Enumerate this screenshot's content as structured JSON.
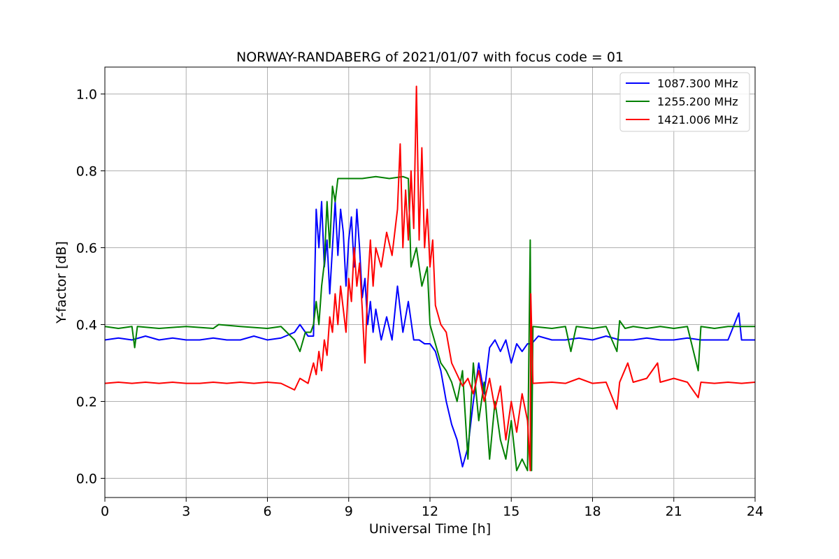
{
  "chart_data": {
    "type": "line",
    "title": "NORWAY-RANDABERG of 2021/01/07 with focus code = 01",
    "xlabel": "Universal Time [h]",
    "ylabel": "Y-factor [dB]",
    "xlim": [
      0,
      24
    ],
    "ylim": [
      -0.05,
      1.07
    ],
    "xticks": [
      0,
      3,
      6,
      9,
      12,
      15,
      18,
      21,
      24
    ],
    "xtick_labels": [
      "0",
      "3",
      "6",
      "9",
      "12",
      "15",
      "18",
      "21",
      "24"
    ],
    "yticks": [
      0.0,
      0.2,
      0.4,
      0.6,
      0.8,
      1.0
    ],
    "ytick_labels": [
      "0.0",
      "0.2",
      "0.4",
      "0.6",
      "0.8",
      "1.0"
    ],
    "grid": true,
    "legend_position": "top-right",
    "series": [
      {
        "name": "1087.300 MHz",
        "color": "#0000ff",
        "points": [
          [
            0,
            0.36
          ],
          [
            0.5,
            0.365
          ],
          [
            1.0,
            0.36
          ],
          [
            1.5,
            0.37
          ],
          [
            2.0,
            0.36
          ],
          [
            2.5,
            0.365
          ],
          [
            3.0,
            0.36
          ],
          [
            3.5,
            0.36
          ],
          [
            4.0,
            0.365
          ],
          [
            4.5,
            0.36
          ],
          [
            5.0,
            0.36
          ],
          [
            5.5,
            0.37
          ],
          [
            6.0,
            0.36
          ],
          [
            6.5,
            0.365
          ],
          [
            7.0,
            0.38
          ],
          [
            7.2,
            0.4
          ],
          [
            7.5,
            0.37
          ],
          [
            7.7,
            0.37
          ],
          [
            7.8,
            0.7
          ],
          [
            7.9,
            0.6
          ],
          [
            8.0,
            0.72
          ],
          [
            8.1,
            0.55
          ],
          [
            8.2,
            0.62
          ],
          [
            8.3,
            0.48
          ],
          [
            8.4,
            0.6
          ],
          [
            8.5,
            0.72
          ],
          [
            8.6,
            0.58
          ],
          [
            8.7,
            0.7
          ],
          [
            8.8,
            0.64
          ],
          [
            8.9,
            0.5
          ],
          [
            9.0,
            0.62
          ],
          [
            9.1,
            0.68
          ],
          [
            9.2,
            0.55
          ],
          [
            9.3,
            0.7
          ],
          [
            9.4,
            0.6
          ],
          [
            9.5,
            0.47
          ],
          [
            9.6,
            0.52
          ],
          [
            9.7,
            0.4
          ],
          [
            9.8,
            0.46
          ],
          [
            9.9,
            0.38
          ],
          [
            10.0,
            0.44
          ],
          [
            10.2,
            0.36
          ],
          [
            10.4,
            0.42
          ],
          [
            10.6,
            0.36
          ],
          [
            10.8,
            0.5
          ],
          [
            11.0,
            0.38
          ],
          [
            11.2,
            0.46
          ],
          [
            11.4,
            0.36
          ],
          [
            11.6,
            0.36
          ],
          [
            11.8,
            0.35
          ],
          [
            12.0,
            0.35
          ],
          [
            12.2,
            0.33
          ],
          [
            12.4,
            0.28
          ],
          [
            12.6,
            0.2
          ],
          [
            12.8,
            0.14
          ],
          [
            13.0,
            0.1
          ],
          [
            13.2,
            0.03
          ],
          [
            13.4,
            0.08
          ],
          [
            13.6,
            0.2
          ],
          [
            13.8,
            0.3
          ],
          [
            14.0,
            0.22
          ],
          [
            14.2,
            0.34
          ],
          [
            14.4,
            0.36
          ],
          [
            14.6,
            0.33
          ],
          [
            14.8,
            0.36
          ],
          [
            15.0,
            0.3
          ],
          [
            15.2,
            0.35
          ],
          [
            15.4,
            0.33
          ],
          [
            15.6,
            0.35
          ],
          [
            15.75,
            0.35
          ],
          [
            16.0,
            0.37
          ],
          [
            16.5,
            0.36
          ],
          [
            17.0,
            0.36
          ],
          [
            17.5,
            0.365
          ],
          [
            18.0,
            0.36
          ],
          [
            18.5,
            0.37
          ],
          [
            19.0,
            0.36
          ],
          [
            19.5,
            0.36
          ],
          [
            20.0,
            0.365
          ],
          [
            20.5,
            0.36
          ],
          [
            21.0,
            0.36
          ],
          [
            21.5,
            0.365
          ],
          [
            22.0,
            0.36
          ],
          [
            22.5,
            0.36
          ],
          [
            23.0,
            0.36
          ],
          [
            23.4,
            0.43
          ],
          [
            23.5,
            0.36
          ],
          [
            24.0,
            0.36
          ]
        ]
      },
      {
        "name": "1255.200 MHz",
        "color": "#008000",
        "points": [
          [
            0,
            0.395
          ],
          [
            0.5,
            0.39
          ],
          [
            1.0,
            0.395
          ],
          [
            1.1,
            0.34
          ],
          [
            1.2,
            0.395
          ],
          [
            2.0,
            0.39
          ],
          [
            3.0,
            0.395
          ],
          [
            4.0,
            0.39
          ],
          [
            4.2,
            0.4
          ],
          [
            5.0,
            0.395
          ],
          [
            6.0,
            0.39
          ],
          [
            6.5,
            0.395
          ],
          [
            7.0,
            0.36
          ],
          [
            7.2,
            0.33
          ],
          [
            7.4,
            0.38
          ],
          [
            7.6,
            0.38
          ],
          [
            7.7,
            0.4
          ],
          [
            7.8,
            0.46
          ],
          [
            7.9,
            0.4
          ],
          [
            8.0,
            0.5
          ],
          [
            8.1,
            0.56
          ],
          [
            8.2,
            0.72
          ],
          [
            8.3,
            0.6
          ],
          [
            8.4,
            0.76
          ],
          [
            8.5,
            0.72
          ],
          [
            8.6,
            0.78
          ],
          [
            8.8,
            0.78
          ],
          [
            9.0,
            0.78
          ],
          [
            9.5,
            0.78
          ],
          [
            10.0,
            0.785
          ],
          [
            10.5,
            0.78
          ],
          [
            11.0,
            0.785
          ],
          [
            11.2,
            0.78
          ],
          [
            11.3,
            0.55
          ],
          [
            11.5,
            0.6
          ],
          [
            11.7,
            0.5
          ],
          [
            11.9,
            0.55
          ],
          [
            12.0,
            0.4
          ],
          [
            12.2,
            0.35
          ],
          [
            12.4,
            0.3
          ],
          [
            12.6,
            0.28
          ],
          [
            12.8,
            0.25
          ],
          [
            13.0,
            0.2
          ],
          [
            13.2,
            0.28
          ],
          [
            13.4,
            0.05
          ],
          [
            13.6,
            0.3
          ],
          [
            13.8,
            0.15
          ],
          [
            14.0,
            0.25
          ],
          [
            14.2,
            0.05
          ],
          [
            14.4,
            0.2
          ],
          [
            14.6,
            0.1
          ],
          [
            14.8,
            0.05
          ],
          [
            15.0,
            0.15
          ],
          [
            15.2,
            0.02
          ],
          [
            15.4,
            0.05
          ],
          [
            15.6,
            0.02
          ],
          [
            15.7,
            0.62
          ],
          [
            15.75,
            0.02
          ],
          [
            15.8,
            0.395
          ],
          [
            16.5,
            0.39
          ],
          [
            17.0,
            0.395
          ],
          [
            17.2,
            0.33
          ],
          [
            17.4,
            0.395
          ],
          [
            18.0,
            0.39
          ],
          [
            18.5,
            0.395
          ],
          [
            18.9,
            0.33
          ],
          [
            19.0,
            0.41
          ],
          [
            19.2,
            0.39
          ],
          [
            19.5,
            0.395
          ],
          [
            20.0,
            0.39
          ],
          [
            20.5,
            0.395
          ],
          [
            21.0,
            0.39
          ],
          [
            21.5,
            0.395
          ],
          [
            21.9,
            0.28
          ],
          [
            22.0,
            0.395
          ],
          [
            22.5,
            0.39
          ],
          [
            23.0,
            0.395
          ],
          [
            24.0,
            0.395
          ]
        ]
      },
      {
        "name": "1421.006 MHz",
        "color": "#ff0000",
        "points": [
          [
            0,
            0.247
          ],
          [
            0.5,
            0.25
          ],
          [
            1.0,
            0.247
          ],
          [
            1.5,
            0.25
          ],
          [
            2.0,
            0.247
          ],
          [
            2.5,
            0.25
          ],
          [
            3.0,
            0.247
          ],
          [
            3.5,
            0.247
          ],
          [
            4.0,
            0.25
          ],
          [
            4.5,
            0.247
          ],
          [
            5.0,
            0.25
          ],
          [
            5.5,
            0.247
          ],
          [
            6.0,
            0.25
          ],
          [
            6.5,
            0.247
          ],
          [
            7.0,
            0.23
          ],
          [
            7.2,
            0.26
          ],
          [
            7.5,
            0.247
          ],
          [
            7.7,
            0.3
          ],
          [
            7.8,
            0.27
          ],
          [
            7.9,
            0.33
          ],
          [
            8.0,
            0.28
          ],
          [
            8.1,
            0.36
          ],
          [
            8.2,
            0.32
          ],
          [
            8.3,
            0.42
          ],
          [
            8.4,
            0.38
          ],
          [
            8.5,
            0.48
          ],
          [
            8.6,
            0.4
          ],
          [
            8.7,
            0.5
          ],
          [
            8.8,
            0.44
          ],
          [
            8.9,
            0.38
          ],
          [
            9.0,
            0.52
          ],
          [
            9.1,
            0.46
          ],
          [
            9.2,
            0.6
          ],
          [
            9.3,
            0.5
          ],
          [
            9.4,
            0.56
          ],
          [
            9.5,
            0.44
          ],
          [
            9.6,
            0.3
          ],
          [
            9.7,
            0.5
          ],
          [
            9.8,
            0.62
          ],
          [
            9.9,
            0.5
          ],
          [
            10.0,
            0.6
          ],
          [
            10.2,
            0.55
          ],
          [
            10.4,
            0.64
          ],
          [
            10.6,
            0.58
          ],
          [
            10.8,
            0.7
          ],
          [
            10.9,
            0.87
          ],
          [
            11.0,
            0.6
          ],
          [
            11.1,
            0.75
          ],
          [
            11.2,
            0.62
          ],
          [
            11.3,
            0.8
          ],
          [
            11.4,
            0.65
          ],
          [
            11.5,
            1.02
          ],
          [
            11.6,
            0.62
          ],
          [
            11.7,
            0.86
          ],
          [
            11.8,
            0.6
          ],
          [
            11.9,
            0.7
          ],
          [
            12.0,
            0.55
          ],
          [
            12.1,
            0.62
          ],
          [
            12.2,
            0.45
          ],
          [
            12.4,
            0.4
          ],
          [
            12.6,
            0.38
          ],
          [
            12.8,
            0.3
          ],
          [
            13.0,
            0.27
          ],
          [
            13.2,
            0.24
          ],
          [
            13.4,
            0.26
          ],
          [
            13.6,
            0.22
          ],
          [
            13.8,
            0.28
          ],
          [
            14.0,
            0.2
          ],
          [
            14.2,
            0.26
          ],
          [
            14.4,
            0.18
          ],
          [
            14.6,
            0.24
          ],
          [
            14.8,
            0.1
          ],
          [
            15.0,
            0.2
          ],
          [
            15.2,
            0.12
          ],
          [
            15.4,
            0.22
          ],
          [
            15.6,
            0.15
          ],
          [
            15.7,
            0.02
          ],
          [
            15.72,
            0.48
          ],
          [
            15.8,
            0.247
          ],
          [
            16.5,
            0.25
          ],
          [
            17.0,
            0.247
          ],
          [
            17.5,
            0.26
          ],
          [
            18.0,
            0.247
          ],
          [
            18.5,
            0.25
          ],
          [
            18.9,
            0.18
          ],
          [
            19.0,
            0.25
          ],
          [
            19.3,
            0.3
          ],
          [
            19.5,
            0.25
          ],
          [
            20.0,
            0.26
          ],
          [
            20.4,
            0.3
          ],
          [
            20.5,
            0.25
          ],
          [
            21.0,
            0.26
          ],
          [
            21.5,
            0.25
          ],
          [
            21.9,
            0.21
          ],
          [
            22.0,
            0.25
          ],
          [
            22.5,
            0.247
          ],
          [
            23.0,
            0.25
          ],
          [
            23.5,
            0.247
          ],
          [
            24.0,
            0.25
          ]
        ]
      }
    ]
  }
}
